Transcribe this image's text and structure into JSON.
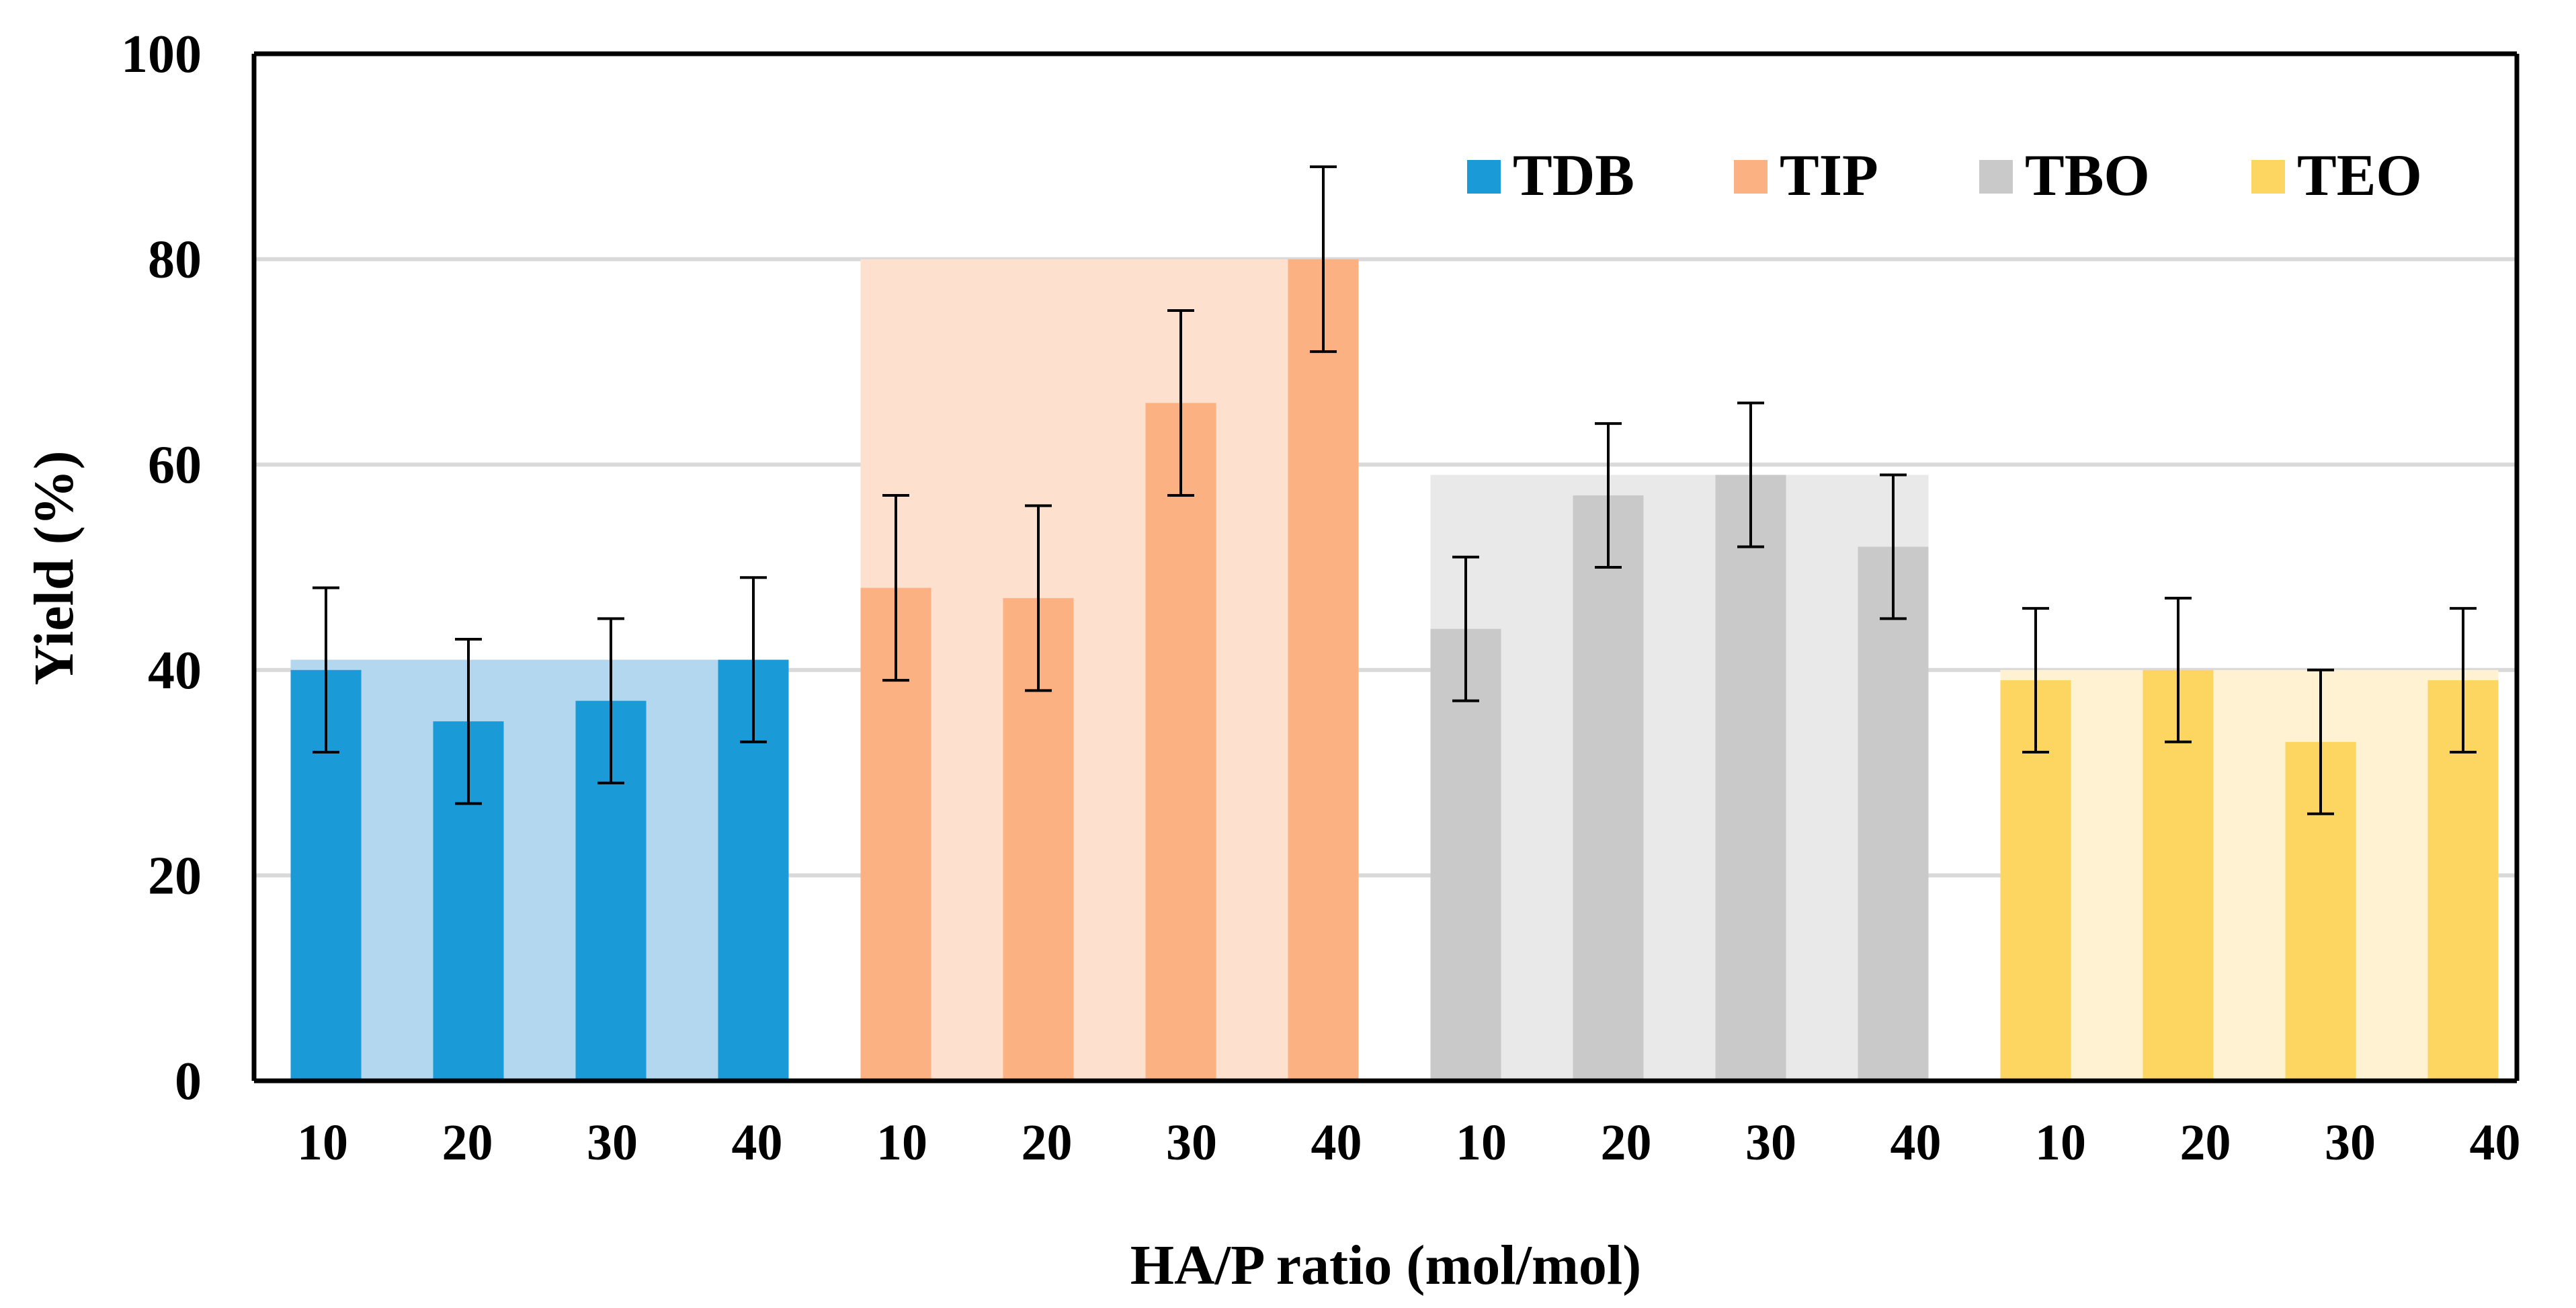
{
  "chart_data": {
    "type": "bar",
    "title": "",
    "xlabel": "HA/P ratio (mol/mol)",
    "ylabel": "Yield (%)",
    "ylim": [
      0,
      100
    ],
    "yticks": [
      0,
      20,
      40,
      60,
      80,
      100
    ],
    "grid": true,
    "legend_position": "top-right",
    "categories": [
      "10",
      "20",
      "30",
      "40"
    ],
    "x_tick_labels": [
      "10",
      "20",
      "30",
      "40",
      "10",
      "20",
      "30",
      "40",
      "10",
      "20",
      "30",
      "40",
      "10",
      "20",
      "30",
      "40"
    ],
    "series": [
      {
        "name": "TDB",
        "values": [
          40,
          35,
          37,
          41
        ],
        "errors": [
          8,
          8,
          8,
          8
        ],
        "background_max": 41,
        "color": "#1a9ad7",
        "background_color": "#b3d7ef"
      },
      {
        "name": "TIP",
        "values": [
          48,
          47,
          66,
          80
        ],
        "errors": [
          9,
          9,
          9,
          9
        ],
        "background_max": 80,
        "color": "#fbb182",
        "background_color": "#fde0cd"
      },
      {
        "name": "TBO",
        "values": [
          44,
          57,
          59,
          52
        ],
        "errors": [
          7,
          7,
          7,
          7
        ],
        "background_max": 59,
        "color": "#c9c9c9",
        "background_color": "#e9e9e9"
      },
      {
        "name": "TEO",
        "values": [
          39,
          40,
          33,
          39
        ],
        "errors": [
          7,
          7,
          7,
          7
        ],
        "background_max": 40,
        "color": "#fdd662",
        "background_color": "#fff2d3"
      }
    ]
  }
}
